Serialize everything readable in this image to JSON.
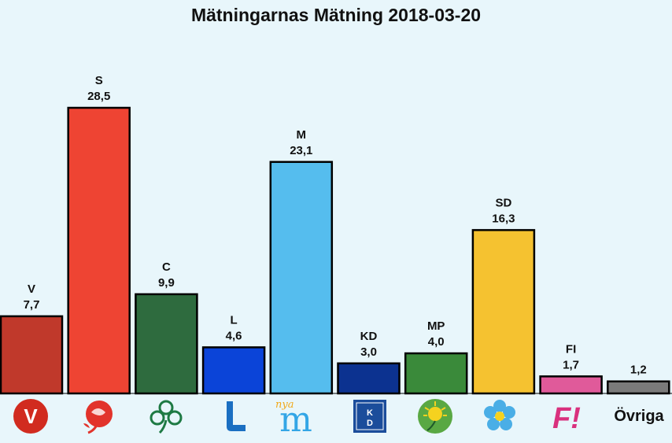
{
  "chart_data": {
    "type": "bar",
    "title": "Mätningarnas Mätning 2018-03-20",
    "categories": [
      "V",
      "S",
      "C",
      "L",
      "M",
      "KD",
      "MP",
      "SD",
      "FI",
      ""
    ],
    "values": [
      7.7,
      28.5,
      9.9,
      4.6,
      23.1,
      3.0,
      4.0,
      16.3,
      1.7,
      1.2
    ],
    "value_labels": [
      "7,7",
      "28,5",
      "9,9",
      "4,6",
      "23,1",
      "3,0",
      "4,0",
      "16,3",
      "1,7",
      "1,2"
    ],
    "colors": [
      "#c0392b",
      "#ee4433",
      "#2e6b3e",
      "#0b44d8",
      "#55bdee",
      "#0c3290",
      "#3a8a3a",
      "#f5c230",
      "#e05a9a",
      "#7a7a7a"
    ],
    "xlabel": "",
    "ylabel": "",
    "ylim": [
      0,
      28.5
    ],
    "grid": false,
    "legend": "none"
  },
  "logos": {
    "v_icon_text": "V",
    "kd_icon_text_top": "K",
    "kd_icon_text_bottom": "D",
    "fi_icon_text": "F!",
    "nya_text": "nya",
    "m_text": "m",
    "ovriga_label": "Övriga"
  }
}
